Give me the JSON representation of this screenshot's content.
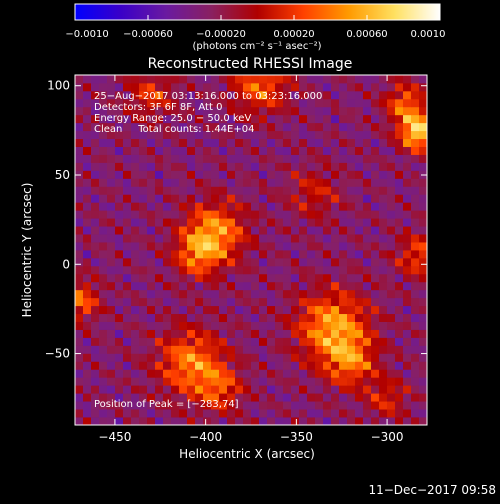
{
  "chart_data": {
    "type": "heatmap",
    "title": "Reconstructed RHESSI Image",
    "xlabel": "Heliocentric X (arcsec)",
    "ylabel": "Heliocentric Y (arcsec)",
    "xlim": [
      -472,
      -278
    ],
    "ylim": [
      -90,
      106
    ],
    "x_ticks": [
      {
        "value": -450,
        "label": "−450"
      },
      {
        "value": -400,
        "label": "−400"
      },
      {
        "value": -350,
        "label": "−350"
      },
      {
        "value": -300,
        "label": "−300"
      }
    ],
    "y_ticks": [
      {
        "value": 100,
        "label": "100"
      },
      {
        "value": 50,
        "label": "50"
      },
      {
        "value": 0,
        "label": "0"
      },
      {
        "value": -50,
        "label": "−50"
      }
    ],
    "colorbar": {
      "range": [
        -0.001,
        0.001
      ],
      "unit_label": "(photons cm⁻² s⁻¹ asec⁻²)",
      "ticks": [
        {
          "value": -0.001,
          "label": "−0.0010"
        },
        {
          "value": -0.0006,
          "label": "−0.00060"
        },
        {
          "value": -0.0002,
          "label": "−0.00020"
        },
        {
          "value": 0.0002,
          "label": "0.00020"
        },
        {
          "value": 0.0006,
          "label": "0.00060"
        },
        {
          "value": 0.001,
          "label": "0.0010"
        }
      ]
    },
    "colormap": [
      "#0000ff",
      "#3a00c8",
      "#6a1aa0",
      "#8a2060",
      "#b00000",
      "#ff4000",
      "#ff9a00",
      "#ffe060",
      "#ffffff"
    ],
    "annotations": [
      "25−Aug−2017 03:13:16.000 to 03:23:16.000",
      "Detectors: 3F 6F 8F, Att 0",
      "Energy Range: 25.0 − 50.0 keV",
      "Clean     Total counts: 1.44E+04"
    ],
    "peak_label": "Position of Peak = [−283,74]",
    "peak": [
      -283,
      74
    ],
    "sources": [
      {
        "x": -395,
        "y": 18,
        "amp": 0.00075,
        "sigma": 12
      },
      {
        "x": -405,
        "y": 5,
        "amp": 0.0005,
        "sigma": 9
      },
      {
        "x": -330,
        "y": -35,
        "amp": 0.0008,
        "sigma": 14
      },
      {
        "x": -320,
        "y": -55,
        "amp": 0.00055,
        "sigma": 10
      },
      {
        "x": -408,
        "y": -55,
        "amp": 0.0007,
        "sigma": 13
      },
      {
        "x": -392,
        "y": -70,
        "amp": 0.00045,
        "sigma": 9
      },
      {
        "x": -283,
        "y": 74,
        "amp": 0.001,
        "sigma": 7
      },
      {
        "x": -290,
        "y": 90,
        "amp": 0.0006,
        "sigma": 8
      },
      {
        "x": -370,
        "y": 100,
        "amp": 0.0006,
        "sigma": 11
      },
      {
        "x": -430,
        "y": 95,
        "amp": 0.00045,
        "sigma": 9
      },
      {
        "x": -470,
        "y": -20,
        "amp": 0.0006,
        "sigma": 8
      },
      {
        "x": -282,
        "y": 5,
        "amp": 0.0005,
        "sigma": 9
      },
      {
        "x": -340,
        "y": 40,
        "amp": 0.00035,
        "sigma": 10
      },
      {
        "x": -300,
        "y": -75,
        "amp": 0.0004,
        "sigma": 8
      }
    ]
  },
  "footer": {
    "timestamp": "11−Dec−2017 09:58"
  }
}
